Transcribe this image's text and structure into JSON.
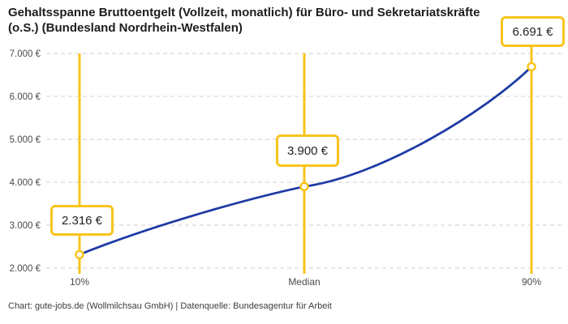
{
  "title": "Gehaltsspanne Bruttoentgelt (Vollzeit, monatlich) für Büro- und Sekretariatskräfte (o.S.) (Bundesland Nordrhein-Westfalen)",
  "footer": "Chart: gute-jobs.de (Wollmilchsau GmbH) | Datenquelle: Bundesagentur für Arbeit",
  "chart_data": {
    "type": "line",
    "title": "Gehaltsspanne Bruttoentgelt (Vollzeit, monatlich) für Büro- und Sekretariatskräfte (o.S.) (Bundesland Nordrhein-Westfalen)",
    "x": [
      "10%",
      "Median",
      "90%"
    ],
    "values": [
      2316,
      3900,
      6691
    ],
    "point_labels": [
      "2.316 €",
      "3.900 €",
      "6.691 €"
    ],
    "y_tick_labels": [
      "2.000 €",
      "3.000 €",
      "4.000 €",
      "5.000 €",
      "6.000 €",
      "7.000 €"
    ],
    "y_tick_values": [
      2000,
      3000,
      4000,
      5000,
      6000,
      7000
    ],
    "ylim": [
      2000,
      7000
    ],
    "grid": "horizontal-dashed",
    "legend": "none",
    "xlabel": "",
    "ylabel": "",
    "source": "Datenquelle: Bundesagentur für Arbeit",
    "colors": {
      "line": "#1d3aa5",
      "marker_fill": "#ffffff",
      "marker_stroke": "#f8c41c",
      "vertical_line": "#f8c41c",
      "label_border": "#f8c41c",
      "grid": "#cfcfcf",
      "tick_text": "#4b4b4b"
    }
  }
}
